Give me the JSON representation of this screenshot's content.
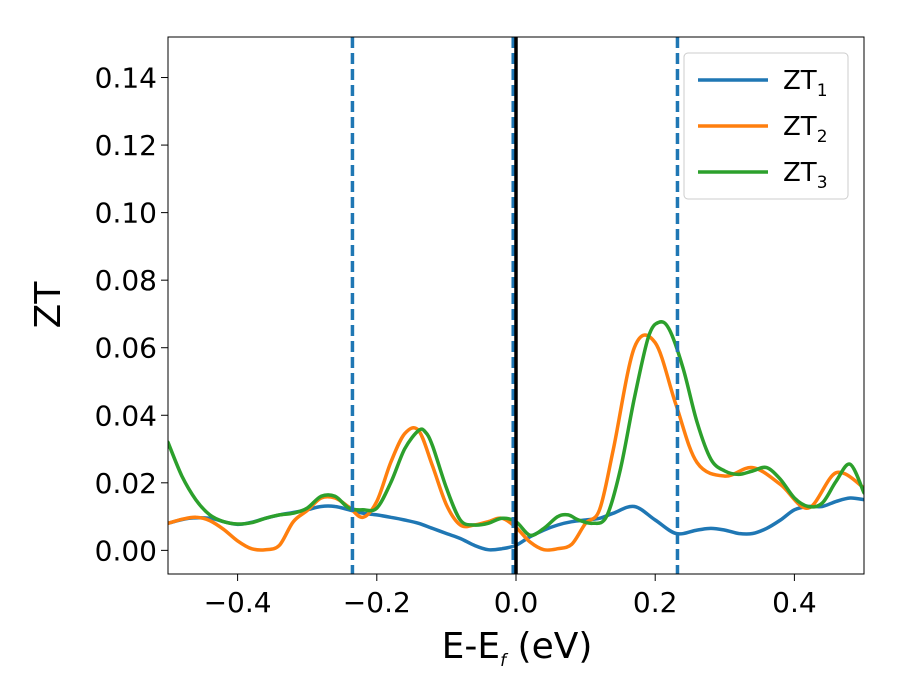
{
  "chart_data": {
    "type": "line",
    "xlabel_main": "E-E",
    "xlabel_sub": "f",
    "xlabel_unit": " (eV)",
    "ylabel": "ZT",
    "xlim": [
      -0.5,
      0.5
    ],
    "ylim": [
      -0.007,
      0.152
    ],
    "x_ticks": [
      {
        "value": -0.4,
        "label": "−0.4"
      },
      {
        "value": -0.2,
        "label": "−0.2"
      },
      {
        "value": 0.0,
        "label": "0.0"
      },
      {
        "value": 0.2,
        "label": "0.2"
      },
      {
        "value": 0.4,
        "label": "0.4"
      }
    ],
    "y_ticks": [
      {
        "value": 0.0,
        "label": "0.00"
      },
      {
        "value": 0.02,
        "label": "0.02"
      },
      {
        "value": 0.04,
        "label": "0.04"
      },
      {
        "value": 0.06,
        "label": "0.06"
      },
      {
        "value": 0.08,
        "label": "0.08"
      },
      {
        "value": 0.1,
        "label": "0.10"
      },
      {
        "value": 0.12,
        "label": "0.12"
      },
      {
        "value": 0.14,
        "label": "0.14"
      }
    ],
    "grid": false,
    "legend_position": "top-right",
    "vertical_lines": [
      {
        "x": -0.235,
        "style": "dashed",
        "color": "#1f77b4"
      },
      {
        "x": 0.232,
        "style": "dashed",
        "color": "#1f77b4"
      },
      {
        "x": -0.004,
        "style": "dashed",
        "color": "#1f77b4"
      },
      {
        "x": 0.0,
        "style": "solid",
        "color": "#000000"
      }
    ],
    "series": [
      {
        "name": "ZT",
        "sub": "1",
        "color": "#1f77b4",
        "x": [
          -0.5,
          -0.47,
          -0.44,
          -0.42,
          -0.4,
          -0.38,
          -0.36,
          -0.34,
          -0.32,
          -0.3,
          -0.28,
          -0.26,
          -0.24,
          -0.22,
          -0.2,
          -0.18,
          -0.16,
          -0.14,
          -0.12,
          -0.1,
          -0.08,
          -0.06,
          -0.04,
          -0.02,
          0.0,
          0.02,
          0.04,
          0.06,
          0.08,
          0.1,
          0.12,
          0.14,
          0.17,
          0.2,
          0.23,
          0.26,
          0.28,
          0.3,
          0.32,
          0.34,
          0.36,
          0.38,
          0.4,
          0.42,
          0.44,
          0.46,
          0.48,
          0.5
        ],
        "y": [
          0.008,
          0.0095,
          0.0095,
          0.0085,
          0.0077,
          0.0083,
          0.0095,
          0.0105,
          0.0112,
          0.012,
          0.013,
          0.013,
          0.012,
          0.011,
          0.0105,
          0.0098,
          0.009,
          0.008,
          0.0065,
          0.005,
          0.0035,
          0.0015,
          0.0002,
          0.0005,
          0.0015,
          0.004,
          0.006,
          0.0075,
          0.0085,
          0.009,
          0.0095,
          0.011,
          0.013,
          0.009,
          0.005,
          0.006,
          0.0065,
          0.006,
          0.005,
          0.005,
          0.0065,
          0.009,
          0.012,
          0.013,
          0.013,
          0.0145,
          0.0155,
          0.015
        ]
      },
      {
        "name": "ZT",
        "sub": "2",
        "color": "#ff7f0e",
        "x": [
          -0.5,
          -0.48,
          -0.46,
          -0.44,
          -0.42,
          -0.4,
          -0.38,
          -0.36,
          -0.34,
          -0.32,
          -0.3,
          -0.28,
          -0.26,
          -0.24,
          -0.22,
          -0.2,
          -0.18,
          -0.16,
          -0.14,
          -0.12,
          -0.1,
          -0.08,
          -0.06,
          -0.04,
          -0.02,
          0.0,
          0.02,
          0.04,
          0.06,
          0.08,
          0.1,
          0.12,
          0.14,
          0.17,
          0.2,
          0.23,
          0.26,
          0.3,
          0.34,
          0.38,
          0.42,
          0.46,
          0.5
        ],
        "y": [
          0.008,
          0.0092,
          0.0098,
          0.0088,
          0.0062,
          0.0028,
          0.0005,
          0.0002,
          0.0015,
          0.0085,
          0.0118,
          0.0155,
          0.0155,
          0.0128,
          0.0098,
          0.0145,
          0.026,
          0.0345,
          0.0355,
          0.025,
          0.0135,
          0.0075,
          0.0075,
          0.0085,
          0.0095,
          0.0068,
          0.0025,
          0.0002,
          0.0005,
          0.0018,
          0.008,
          0.012,
          0.03,
          0.06,
          0.0615,
          0.043,
          0.026,
          0.022,
          0.0245,
          0.0195,
          0.0125,
          0.023,
          0.0185
        ]
      },
      {
        "name": "ZT",
        "sub": "3",
        "color": "#2ca02c",
        "x": [
          -0.5,
          -0.48,
          -0.46,
          -0.44,
          -0.42,
          -0.4,
          -0.38,
          -0.36,
          -0.34,
          -0.32,
          -0.3,
          -0.28,
          -0.26,
          -0.24,
          -0.22,
          -0.2,
          -0.18,
          -0.16,
          -0.14,
          -0.13,
          -0.12,
          -0.1,
          -0.08,
          -0.06,
          -0.04,
          -0.02,
          0.0,
          0.02,
          0.04,
          0.06,
          0.075,
          0.09,
          0.11,
          0.13,
          0.15,
          0.17,
          0.19,
          0.205,
          0.22,
          0.24,
          0.26,
          0.28,
          0.3,
          0.32,
          0.34,
          0.36,
          0.38,
          0.4,
          0.42,
          0.44,
          0.46,
          0.48,
          0.5
        ],
        "y": [
          0.032,
          0.022,
          0.015,
          0.0105,
          0.0085,
          0.0078,
          0.0082,
          0.0095,
          0.0105,
          0.011,
          0.0125,
          0.016,
          0.016,
          0.0125,
          0.012,
          0.0125,
          0.02,
          0.03,
          0.0355,
          0.035,
          0.031,
          0.0185,
          0.009,
          0.0075,
          0.008,
          0.0095,
          0.0085,
          0.0045,
          0.0065,
          0.01,
          0.0105,
          0.009,
          0.008,
          0.01,
          0.024,
          0.045,
          0.063,
          0.0675,
          0.0655,
          0.054,
          0.038,
          0.027,
          0.0235,
          0.0225,
          0.0235,
          0.0245,
          0.021,
          0.0155,
          0.013,
          0.014,
          0.0205,
          0.0255,
          0.017
        ]
      }
    ]
  }
}
